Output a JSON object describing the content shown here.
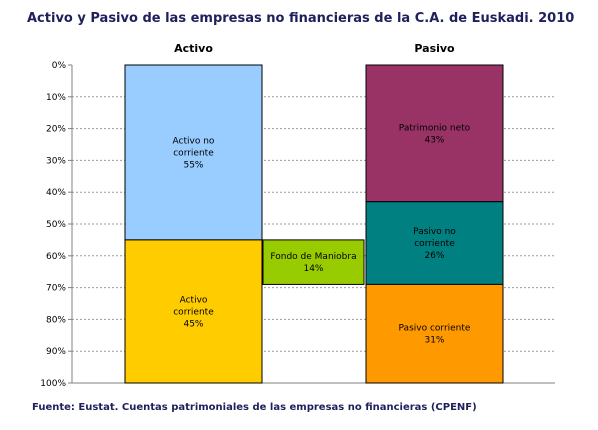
{
  "title": "Activo y Pasivo de las empresas no financieras de la C.A. de Euskadi. 2010",
  "source": "Fuente: Eustat. Cuentas patrimoniales de las empresas no financieras (CPENF)",
  "chart_data": {
    "type": "bar",
    "subtype": "stacked-waterfall",
    "categories": [
      "Activo",
      "",
      "Pasivo"
    ],
    "y_axis": {
      "ylim": [
        0,
        100
      ],
      "unit": "%",
      "reversed": true,
      "ticks": [
        "0%",
        "10%",
        "20%",
        "30%",
        "40%",
        "50%",
        "60%",
        "70%",
        "80%",
        "90%",
        "100%"
      ],
      "grid": true
    },
    "segments": [
      {
        "category": 0,
        "start": 0,
        "end": 55,
        "lines": [
          "Activo no",
          "corriente",
          "55%"
        ],
        "color": "#99ccff"
      },
      {
        "category": 0,
        "start": 55,
        "end": 100,
        "lines": [
          "Activo",
          "corriente",
          "45%"
        ],
        "color": "#ffcc00"
      },
      {
        "category": 1,
        "start": 55,
        "end": 69,
        "lines": [
          "Fondo de Maniobra",
          "14%"
        ],
        "color": "#99cc00"
      },
      {
        "category": 2,
        "start": 0,
        "end": 43,
        "lines": [
          "Patrimonio neto",
          "43%"
        ],
        "color": "#993366"
      },
      {
        "category": 2,
        "start": 43,
        "end": 69,
        "lines": [
          "Pasivo no",
          "corriente",
          "26%"
        ],
        "color": "#008080"
      },
      {
        "category": 2,
        "start": 69,
        "end": 100,
        "lines": [
          "Pasivo corriente",
          "31%"
        ],
        "color": "#ff9900"
      }
    ]
  }
}
